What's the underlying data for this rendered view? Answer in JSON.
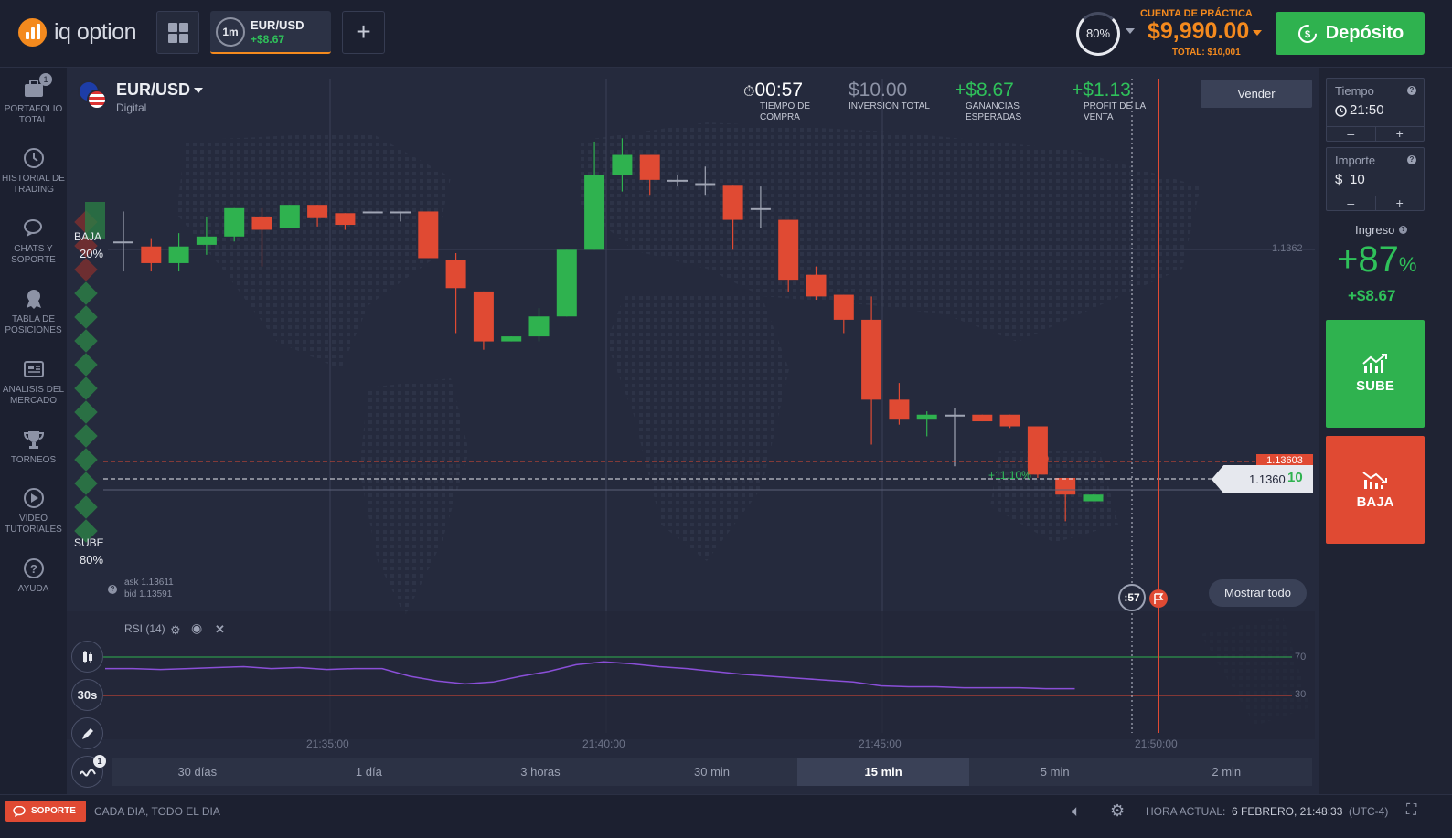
{
  "header": {
    "logo_text": "iq option",
    "asset_tab": {
      "timeframe": "1m",
      "name": "EUR/USD",
      "profit": "+$8.67"
    },
    "add_tab": "+",
    "gauge": "80%",
    "account_label": "CUENTA DE PRÁCTICA",
    "balance": "$9,990.00",
    "total": "TOTAL: $10,001",
    "deposit_label": "Depósito"
  },
  "sidebar": {
    "items": [
      {
        "label": "PORTAFOLIO TOTAL",
        "badge": "1"
      },
      {
        "label": "HISTORIAL DE TRADING"
      },
      {
        "label": "CHATS Y SOPORTE"
      },
      {
        "label": "TABLA DE POSICIONES"
      },
      {
        "label": "ANALISIS DEL MERCADO"
      },
      {
        "label": "TORNEOS"
      },
      {
        "label": "VIDEO TUTORIALES"
      },
      {
        "label": "AYUDA"
      }
    ]
  },
  "asset": {
    "name": "EUR/USD",
    "type": "Digital"
  },
  "sentiment": {
    "down_label": "BAJA",
    "down_pct": "20%",
    "up_label": "SUBE",
    "up_pct": "80%"
  },
  "ticket": {
    "timer": "00:57",
    "timer_label": "TIEMPO DE COMPRA",
    "investment": "$10.00",
    "investment_label": "INVERSIÓN TOTAL",
    "expected": "+$8.67",
    "expected_label": "GANANCIAS ESPERADAS",
    "sale": "+$1.13",
    "sale_label": "PROFIT DE LA VENTA"
  },
  "sell_button": "Vender",
  "show_all_button": "Mostrar todo",
  "quotes": {
    "ask": "ask 1.13611",
    "bid": "bid 1.13591"
  },
  "price_labels": {
    "level": "1.1362",
    "red_line": "1.13603",
    "current_main": "1.1360",
    "current_tail": "10",
    "low": "1.1360",
    "deal_pct": "+11.10%"
  },
  "indicator": {
    "name": "RSI (14)",
    "upper": "70",
    "lower": "30"
  },
  "time_axis": [
    "21:35:00",
    "21:40:00",
    "21:45:00",
    "21:50:00"
  ],
  "countdown": ":57",
  "tools": {
    "interval": "30s",
    "indicator_badge": "1"
  },
  "timeframes": [
    "30 días",
    "1 día",
    "3 horas",
    "30 min",
    "15 min",
    "5 min",
    "2 min"
  ],
  "timeframe_active": "15 min",
  "right_panel": {
    "time_label": "Tiempo",
    "time_value": "21:50",
    "amount_label": "Importe",
    "amount_currency": "$",
    "amount_value": "10",
    "minus": "–",
    "plus": "+",
    "income_label": "Ingreso",
    "income_pct": "+87",
    "income_pct_sign": "%",
    "income_amount": "+$8.67",
    "up_label": "SUBE",
    "down_label": "BAJA"
  },
  "footer": {
    "support": "SOPORTE",
    "hours": "CADA DIA, TODO EL DIA",
    "time_label": "HORA ACTUAL:",
    "time_value": "6 FEBRERO, 21:48:33",
    "tz": "(UTC-4)"
  },
  "chart_data": {
    "type": "candlestick",
    "ohlc": [
      {
        "o": 1.1363,
        "h": 1.13648,
        "l": 1.13612,
        "c": 1.1363
      },
      {
        "o": 1.13627,
        "h": 1.13632,
        "l": 1.13612,
        "c": 1.13617
      },
      {
        "o": 1.13617,
        "h": 1.13635,
        "l": 1.13612,
        "c": 1.13627
      },
      {
        "o": 1.13628,
        "h": 1.13645,
        "l": 1.13622,
        "c": 1.13633
      },
      {
        "o": 1.13633,
        "h": 1.1365,
        "l": 1.1363,
        "c": 1.1365
      },
      {
        "o": 1.13645,
        "h": 1.1365,
        "l": 1.13615,
        "c": 1.13637
      },
      {
        "o": 1.13638,
        "h": 1.13652,
        "l": 1.13638,
        "c": 1.13652
      },
      {
        "o": 1.13652,
        "h": 1.13652,
        "l": 1.13639,
        "c": 1.13644
      },
      {
        "o": 1.13647,
        "h": 1.13647,
        "l": 1.13637,
        "c": 1.1364
      },
      {
        "o": 1.13648,
        "h": 1.13648,
        "l": 1.13648,
        "c": 1.13648
      },
      {
        "o": 1.13648,
        "h": 1.13648,
        "l": 1.13642,
        "c": 1.13648
      },
      {
        "o": 1.13648,
        "h": 1.13648,
        "l": 1.1362,
        "c": 1.1362
      },
      {
        "o": 1.13619,
        "h": 1.13623,
        "l": 1.13575,
        "c": 1.13602
      },
      {
        "o": 1.136,
        "h": 1.136,
        "l": 1.13565,
        "c": 1.1357
      },
      {
        "o": 1.1357,
        "h": 1.13573,
        "l": 1.1357,
        "c": 1.13573
      },
      {
        "o": 1.13573,
        "h": 1.1359,
        "l": 1.1357,
        "c": 1.13585
      },
      {
        "o": 1.13585,
        "h": 1.13625,
        "l": 1.13585,
        "c": 1.13625
      },
      {
        "o": 1.13625,
        "h": 1.1369,
        "l": 1.13625,
        "c": 1.1367
      },
      {
        "o": 1.1367,
        "h": 1.13692,
        "l": 1.1366,
        "c": 1.13682
      },
      {
        "o": 1.13682,
        "h": 1.13682,
        "l": 1.13658,
        "c": 1.13667
      },
      {
        "o": 1.13667,
        "h": 1.1367,
        "l": 1.13663,
        "c": 1.13667
      },
      {
        "o": 1.13665,
        "h": 1.13675,
        "l": 1.13658,
        "c": 1.13665
      },
      {
        "o": 1.13664,
        "h": 1.13664,
        "l": 1.13625,
        "c": 1.13643
      },
      {
        "o": 1.1365,
        "h": 1.13663,
        "l": 1.13638,
        "c": 1.1365
      },
      {
        "o": 1.13643,
        "h": 1.13643,
        "l": 1.136,
        "c": 1.13607
      },
      {
        "o": 1.1361,
        "h": 1.13615,
        "l": 1.13595,
        "c": 1.13597
      },
      {
        "o": 1.13598,
        "h": 1.13598,
        "l": 1.13575,
        "c": 1.13583
      },
      {
        "o": 1.13583,
        "h": 1.13597,
        "l": 1.13508,
        "c": 1.13535
      },
      {
        "o": 1.13535,
        "h": 1.13545,
        "l": 1.1352,
        "c": 1.13523
      },
      {
        "o": 1.13523,
        "h": 1.13528,
        "l": 1.13513,
        "c": 1.13526
      },
      {
        "o": 1.13526,
        "h": 1.1353,
        "l": 1.13495,
        "c": 1.13526
      },
      {
        "o": 1.13526,
        "h": 1.13526,
        "l": 1.13522,
        "c": 1.13522
      },
      {
        "o": 1.13526,
        "h": 1.13526,
        "l": 1.13518,
        "c": 1.13519
      },
      {
        "o": 1.13519,
        "h": 1.13519,
        "l": 1.13488,
        "c": 1.1349
      },
      {
        "o": 1.13488,
        "h": 1.13488,
        "l": 1.13462,
        "c": 1.13478
      },
      {
        "o": 1.13474,
        "h": 1.13478,
        "l": 1.13474,
        "c": 1.13478
      }
    ],
    "price_range": [
      1.1346,
      1.13696
    ],
    "rsi": [
      58,
      58,
      57,
      58,
      59,
      60,
      58,
      59,
      57,
      58,
      58,
      50,
      45,
      42,
      44,
      50,
      55,
      62,
      65,
      63,
      60,
      58,
      55,
      52,
      50,
      48,
      46,
      44,
      40,
      39,
      39,
      38,
      38,
      38,
      37,
      37
    ],
    "rsi_levels": [
      70,
      30
    ]
  }
}
